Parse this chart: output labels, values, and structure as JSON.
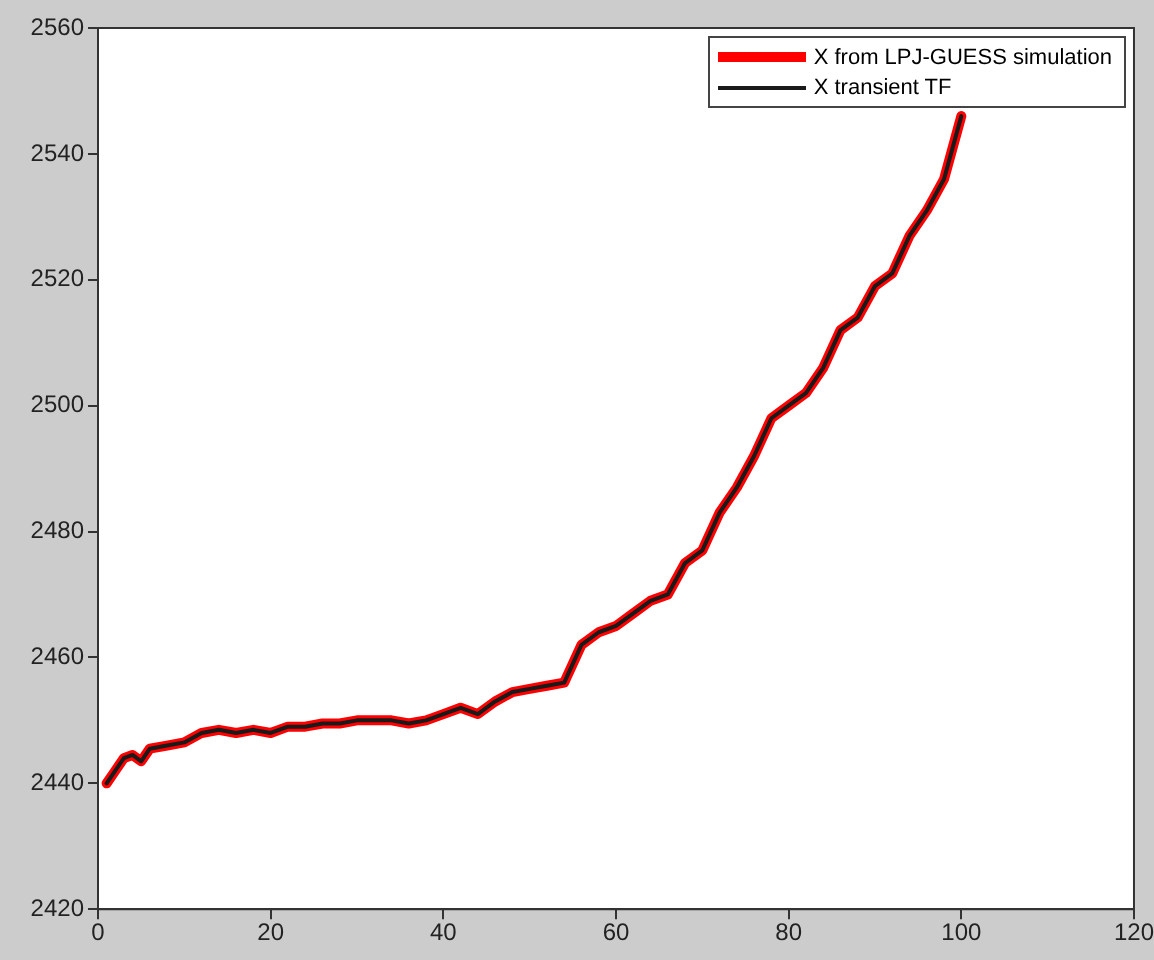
{
  "chart_data": {
    "type": "line",
    "x": [
      1,
      2,
      3,
      4,
      5,
      6,
      8,
      10,
      12,
      14,
      16,
      18,
      20,
      22,
      24,
      26,
      28,
      30,
      32,
      34,
      36,
      38,
      40,
      42,
      44,
      46,
      48,
      50,
      52,
      54,
      56,
      58,
      60,
      62,
      64,
      66,
      68,
      70,
      72,
      74,
      76,
      78,
      80,
      82,
      84,
      86,
      88,
      90,
      92,
      94,
      96,
      98,
      100
    ],
    "series": [
      {
        "name": "X from LPJ-GUESS simulation",
        "color": "#ff0000",
        "values": [
          2440,
          2442,
          2444,
          2444.5,
          2443.5,
          2445.5,
          2446,
          2446.5,
          2448,
          2448.5,
          2448,
          2448.5,
          2448,
          2449,
          2449,
          2449.5,
          2449.5,
          2450,
          2450,
          2450,
          2449.5,
          2450,
          2451,
          2452,
          2451,
          2453,
          2454.5,
          2455,
          2455.5,
          2456,
          2462,
          2464,
          2465,
          2467,
          2469,
          2470,
          2475,
          2477,
          2483,
          2487,
          2492,
          2498,
          2500,
          2502,
          2506,
          2512,
          2514,
          2519,
          2521,
          2527,
          2531,
          2536,
          2546
        ]
      },
      {
        "name": "X transient TF",
        "color": "#1a1a1a",
        "values": [
          2440,
          2442,
          2444,
          2444.5,
          2443.5,
          2445.5,
          2446,
          2446.5,
          2448,
          2448.5,
          2448,
          2448.5,
          2448,
          2449,
          2449,
          2449.5,
          2449.5,
          2450,
          2450,
          2450,
          2449.5,
          2450,
          2451,
          2452,
          2451,
          2453,
          2454.5,
          2455,
          2455.5,
          2456,
          2462,
          2464,
          2465,
          2467,
          2469,
          2470,
          2475,
          2477,
          2483,
          2487,
          2492,
          2498,
          2500,
          2502,
          2506,
          2512,
          2514,
          2519,
          2521,
          2527,
          2531,
          2536,
          2546
        ]
      }
    ],
    "xlim": [
      0,
      120
    ],
    "xticks": [
      0,
      20,
      40,
      60,
      80,
      100,
      120
    ],
    "ylim": [
      2420,
      2560
    ],
    "yticks": [
      2420,
      2440,
      2460,
      2480,
      2500,
      2520,
      2540,
      2560
    ],
    "grid": false,
    "legend": "top right",
    "marker": "none",
    "line_style": "solid"
  }
}
